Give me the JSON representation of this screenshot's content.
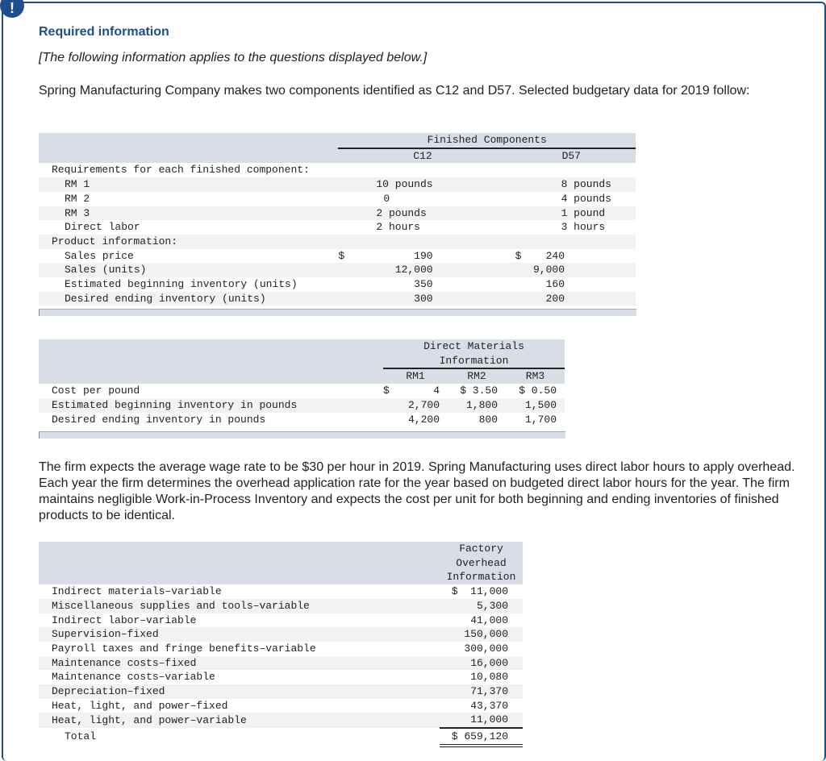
{
  "header": {
    "badge": "!",
    "title": "Required information",
    "note": "[The following information applies to the questions displayed below.]",
    "intro": "Spring Manufacturing Company makes two components identified as C12 and D57. Selected budgetary data for 2019 follow:"
  },
  "table1": {
    "group": "Finished Components",
    "cols": [
      "C12",
      "D57"
    ],
    "rows": [
      {
        "label": "Requirements for each finished component:",
        "indent": 0,
        "c12": "",
        "d57": ""
      },
      {
        "label": "RM 1",
        "indent": 2,
        "c12": "10 pounds",
        "d57": "8 pounds"
      },
      {
        "label": "RM 2",
        "indent": 2,
        "c12": "0",
        "d57": "4 pounds"
      },
      {
        "label": "RM 3",
        "indent": 2,
        "c12": "2 pounds",
        "d57": "1 pound"
      },
      {
        "label": "Direct labor",
        "indent": 2,
        "c12": "2 hours",
        "d57": "3 hours"
      },
      {
        "label": "Product information:",
        "indent": 0,
        "c12": "",
        "d57": ""
      },
      {
        "label": "Sales price",
        "indent": 2,
        "c12": "190",
        "d57": "240",
        "dollar": "$"
      },
      {
        "label": "Sales (units)",
        "indent": 2,
        "c12": "12,000",
        "d57": "9,000"
      },
      {
        "label": "Estimated beginning inventory (units)",
        "indent": 2,
        "c12": "350",
        "d57": "160"
      },
      {
        "label": "Desired ending inventory (units)",
        "indent": 2,
        "c12": "300",
        "d57": "200"
      }
    ]
  },
  "table2": {
    "group_line1": "Direct Materials",
    "group_line2": "Information",
    "cols": [
      "RM1",
      "RM2",
      "RM3"
    ],
    "rows": [
      {
        "label": "Cost per pound",
        "v": [
          "4",
          "$ 3.50",
          "$ 0.50"
        ],
        "dollar": "$"
      },
      {
        "label": "Estimated beginning inventory in pounds",
        "v": [
          "2,700",
          "1,800",
          "1,500"
        ]
      },
      {
        "label": "Desired ending inventory in pounds",
        "v": [
          "4,200",
          "800",
          "1,700"
        ]
      }
    ]
  },
  "paragraph": "The firm expects the average wage rate to be $30 per hour in 2019. Spring Manufacturing uses direct labor hours to apply overhead. Each year the firm determines the overhead application rate for the year based on budgeted direct labor hours for the year. The firm maintains negligible Work-in-Process Inventory and expects the cost per unit for both beginning and ending inventories of finished products to be identical.",
  "table3": {
    "head": [
      "Factory",
      "Overhead",
      "Information"
    ],
    "rows": [
      {
        "label": "Indirect materials–variable",
        "v": "$  11,000"
      },
      {
        "label": "Miscellaneous supplies and tools–variable",
        "v": "5,300"
      },
      {
        "label": "Indirect labor–variable",
        "v": "41,000"
      },
      {
        "label": "Supervision–fixed",
        "v": "150,000"
      },
      {
        "label": "Payroll taxes and fringe benefits–variable",
        "v": "300,000"
      },
      {
        "label": "Maintenance costs–fixed",
        "v": "16,000"
      },
      {
        "label": "Maintenance costs–variable",
        "v": "10,080"
      },
      {
        "label": "Depreciation–fixed",
        "v": "71,370"
      },
      {
        "label": "Heat, light, and power–fixed",
        "v": "43,370"
      },
      {
        "label": "Heat, light, and power–variable",
        "v": "11,000"
      }
    ],
    "total_label": "Total",
    "total": "$ 659,120"
  }
}
